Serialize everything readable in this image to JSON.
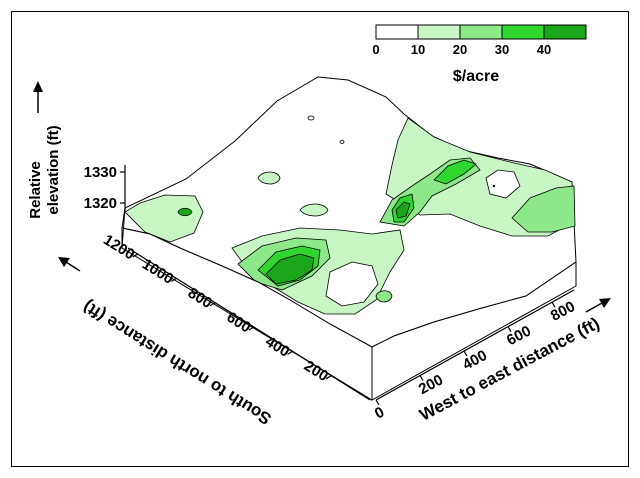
{
  "chart_data": {
    "type": "3d-surface-contour",
    "legend": {
      "title": "$/acre",
      "tick_labels": [
        "0",
        "10",
        "20",
        "30",
        "40"
      ],
      "bins": [
        {
          "range": [
            0,
            10
          ],
          "color": "#ffffff"
        },
        {
          "range": [
            10,
            20
          ],
          "color": "#c8f5c4"
        },
        {
          "range": [
            20,
            30
          ],
          "color": "#8de88a"
        },
        {
          "range": [
            30,
            40
          ],
          "color": "#2fd62f"
        },
        {
          "range": [
            40,
            50
          ],
          "color": "#1aa51a"
        }
      ],
      "position": "top-right"
    },
    "z_axis": {
      "label_line1": "Relative",
      "label_line2": "elevation (ft)",
      "ticks": [
        "1320",
        "1330"
      ],
      "range": [
        1315,
        1335
      ]
    },
    "y_axis": {
      "label": "South to north distance (ft)",
      "ticks": [
        "200",
        "400",
        "600",
        "800",
        "1000",
        "1200"
      ],
      "range": [
        0,
        1250
      ]
    },
    "x_axis": {
      "label": "West to east distance (ft)",
      "ticks": [
        "0",
        "200",
        "400",
        "600",
        "800"
      ],
      "range": [
        0,
        900
      ]
    },
    "colors": {
      "bin0": "#ffffff",
      "bin1": "#c8f5c4",
      "bin2": "#8de88a",
      "bin3": "#2fd62f",
      "bin4": "#1aa51a",
      "side": "#ffffff",
      "line": "#000000"
    }
  }
}
